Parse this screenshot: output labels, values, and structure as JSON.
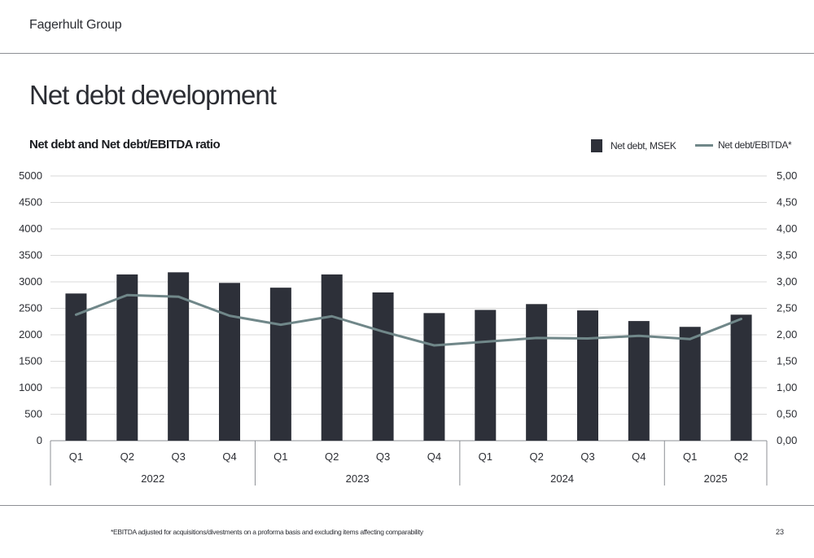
{
  "header": {
    "company": "Fagerhult Group"
  },
  "page": {
    "title": "Net debt development",
    "number": "23"
  },
  "footnote": "*EBITDA adjusted for acquisitions/divestments on a proforma basis and excluding items affecting comparability",
  "colors": {
    "bar": "#2d3039",
    "line": "#708789",
    "grid": "#d9d9d9",
    "axis": "#8c8f94"
  },
  "chart_data": {
    "type": "bar",
    "title": "Net debt and Net debt/EBITDA ratio",
    "categories": [
      "Q1",
      "Q2",
      "Q3",
      "Q4",
      "Q1",
      "Q2",
      "Q3",
      "Q4",
      "Q1",
      "Q2",
      "Q3",
      "Q4",
      "Q1",
      "Q2"
    ],
    "year_groups": [
      {
        "label": "2022",
        "count": 4
      },
      {
        "label": "2023",
        "count": 4
      },
      {
        "label": "2024",
        "count": 4
      },
      {
        "label": "2025",
        "count": 2
      }
    ],
    "series": [
      {
        "name": "Net debt, MSEK",
        "type": "bar",
        "axis": "left",
        "values": [
          2780,
          3140,
          3180,
          2980,
          2890,
          3140,
          2800,
          2410,
          2470,
          2580,
          2460,
          2260,
          2150,
          2380
        ]
      },
      {
        "name": "Net debt/EBITDA*",
        "type": "line",
        "axis": "right",
        "values": [
          2.38,
          2.75,
          2.72,
          2.36,
          2.19,
          2.35,
          2.06,
          1.8,
          1.87,
          1.94,
          1.93,
          1.98,
          1.92,
          2.3
        ]
      }
    ],
    "y_left": {
      "min": 0,
      "max": 5000,
      "ticks": [
        "0",
        "500",
        "1000",
        "1500",
        "2000",
        "2500",
        "3000",
        "3500",
        "4000",
        "4500",
        "5000"
      ]
    },
    "y_right": {
      "min": 0,
      "max": 5,
      "ticks": [
        "0,00",
        "0,50",
        "1,00",
        "1,50",
        "2,00",
        "2,50",
        "3,00",
        "3,50",
        "4,00",
        "4,50",
        "5,00"
      ]
    },
    "grid": true,
    "legend_position": "top-right"
  }
}
